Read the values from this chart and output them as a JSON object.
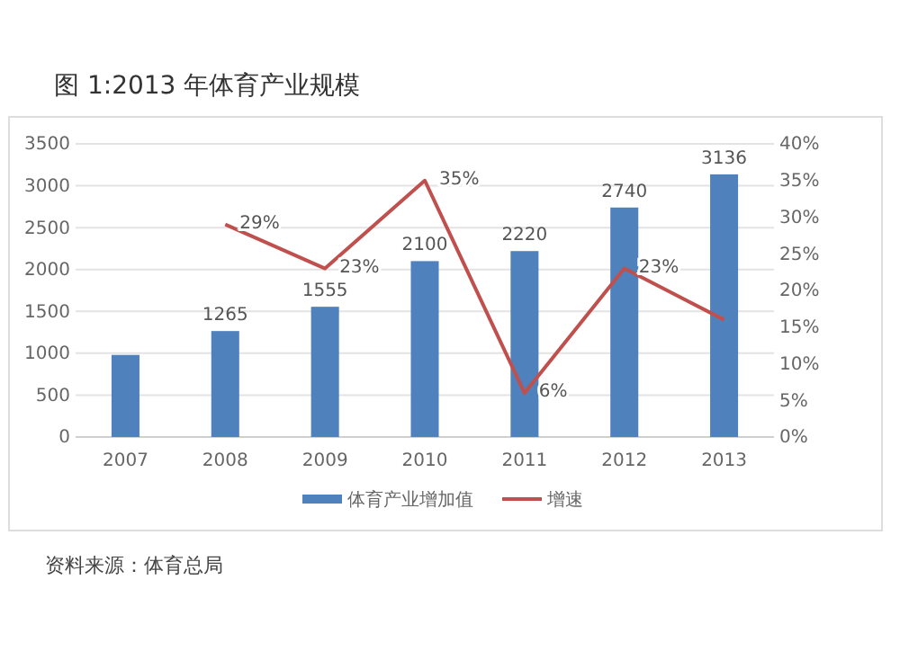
{
  "chart_data": {
    "type": "bar",
    "title": "图 1:2013 年体育产业规模",
    "categories": [
      "2007",
      "2008",
      "2009",
      "2010",
      "2011",
      "2012",
      "2013"
    ],
    "series": [
      {
        "name": "体育产业增加值",
        "color": "#4f81bd",
        "values": [
          980,
          1265,
          1555,
          2100,
          2220,
          2740,
          3136
        ],
        "value_labels": [
          null,
          "1265",
          "1555",
          "2100",
          "2220",
          "2740",
          "3136"
        ]
      },
      {
        "name": "增速",
        "type": "line",
        "axis": "y2",
        "color": "#c0504d",
        "values": [
          null,
          29,
          23,
          35,
          6,
          23,
          16
        ],
        "value_labels": [
          null,
          "29%",
          "23%",
          "35%",
          "6%",
          "23%",
          null
        ]
      }
    ],
    "ylim": [
      0,
      3500
    ],
    "yticks": [
      0,
      500,
      1000,
      1500,
      2000,
      2500,
      3000,
      3500
    ],
    "y2lim": [
      0,
      40
    ],
    "y2ticks": [
      {
        "value": 0,
        "label": "0%"
      },
      {
        "value": 5,
        "label": "5%"
      },
      {
        "value": 10,
        "label": "10%"
      },
      {
        "value": 15,
        "label": "15%"
      },
      {
        "value": 20,
        "label": "20%"
      },
      {
        "value": 25,
        "label": "25%"
      },
      {
        "value": 30,
        "label": "30%"
      },
      {
        "value": 35,
        "label": "35%"
      },
      {
        "value": 40,
        "label": "40%"
      }
    ],
    "grid": "y",
    "legend": "bottom",
    "marker": "none",
    "line_style": "solid",
    "annotations": [
      "资料来源：体育总局"
    ]
  }
}
